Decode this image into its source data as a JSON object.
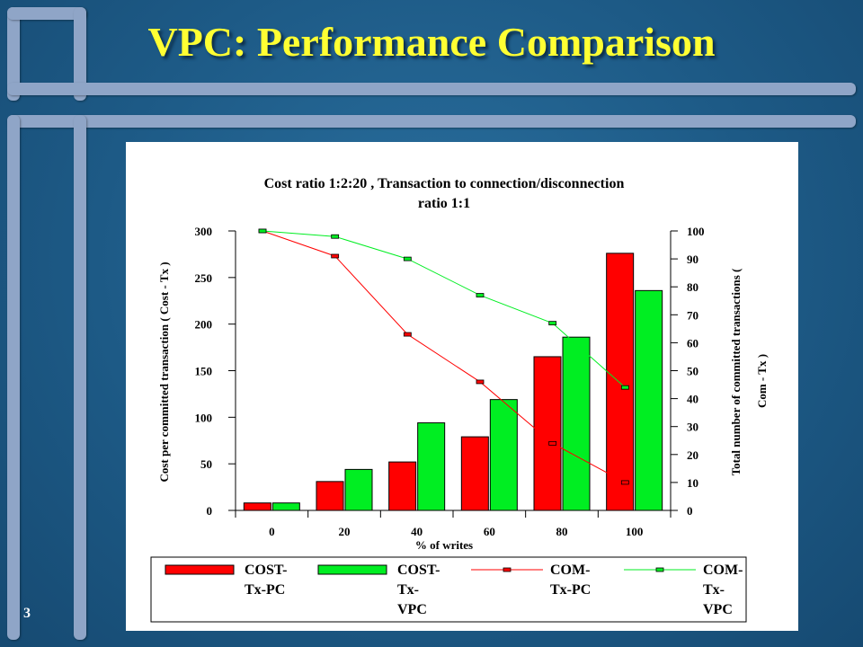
{
  "slide": {
    "title": "VPC: Performance Comparison",
    "slide_number": "3"
  },
  "chart_data": {
    "type": "bar",
    "title": "Cost ratio 1:2:20 , Transaction to connection/disconnection",
    "title_line2": "ratio 1:1",
    "xlabel": "% of writes",
    "ylabel_left": "Cost per committed transaction ( Cost - Tx )",
    "ylabel_right": "Total number of committed transactions (",
    "ylabel_right_line2": "Com - Tx )",
    "categories": [
      "0",
      "20",
      "40",
      "60",
      "80",
      "100"
    ],
    "ylim_left": [
      0,
      300
    ],
    "yticks_left": [
      0,
      50,
      100,
      150,
      200,
      250,
      300
    ],
    "ylim_right": [
      0,
      100
    ],
    "yticks_right": [
      0,
      10,
      20,
      30,
      40,
      50,
      60,
      70,
      80,
      90,
      100
    ],
    "grid": false,
    "legend_position": "bottom",
    "series": [
      {
        "name": "COST-Tx-PC",
        "legend_lines": [
          "COST-",
          "Tx-PC"
        ],
        "type": "bar",
        "axis": "left",
        "color": "#ff0000",
        "values": [
          8,
          31,
          52,
          79,
          165,
          276
        ]
      },
      {
        "name": "COST-Tx-VPC",
        "legend_lines": [
          "COST-",
          "Tx-",
          "VPC"
        ],
        "type": "bar",
        "axis": "left",
        "color": "#00ee22",
        "values": [
          8,
          44,
          94,
          119,
          186,
          236
        ]
      },
      {
        "name": "COM-Tx-PC",
        "legend_lines": [
          "COM-",
          "Tx-PC"
        ],
        "type": "line",
        "axis": "right",
        "color": "#ff0000",
        "values": [
          100,
          91,
          63,
          46,
          24,
          10
        ]
      },
      {
        "name": "COM-Tx-VPC",
        "legend_lines": [
          "COM-",
          "Tx-",
          "VPC"
        ],
        "type": "line",
        "axis": "right",
        "color": "#00ee22",
        "values": [
          100,
          98,
          90,
          77,
          67,
          44
        ]
      }
    ]
  }
}
